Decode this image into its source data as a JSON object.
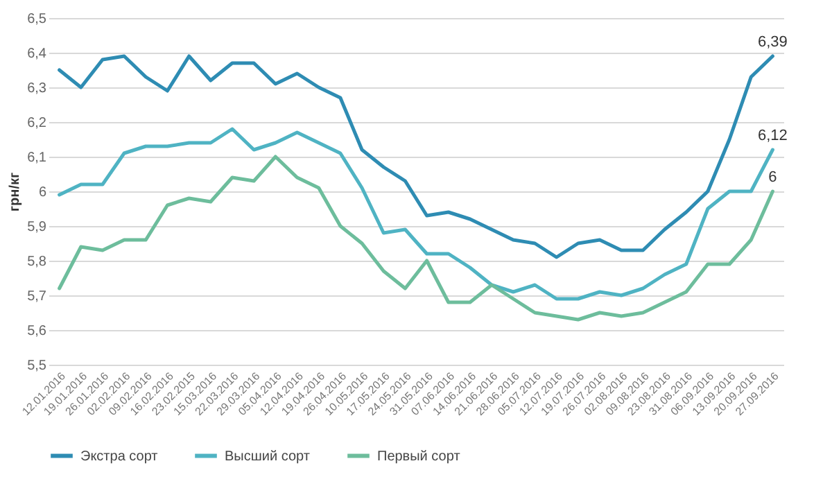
{
  "chart_data": {
    "type": "line",
    "ylabel": "грн/кг",
    "categories": [
      "12.01.2016",
      "19.01.2016",
      "26.01.2016",
      "02.02.2016",
      "09.02.2016",
      "16.02.2016",
      "23.02.2015",
      "15.03.2016",
      "22.03.2016",
      "29.03.2016",
      "05.04.2016",
      "12.04.2016",
      "19.04.2016",
      "26.04.2016",
      "10.05.2016",
      "17.05.2016",
      "24.05.2016",
      "31.05.2016",
      "07.06.2016",
      "14.06.2016",
      "21.06.2016",
      "28.06.2016",
      "05.07.2016",
      "12.07.2016",
      "19.07.2016",
      "26.07.2016",
      "02.08.2016",
      "09.08.2016",
      "23.08.2016",
      "31.08.2016",
      "06.09.2016",
      "13.09.2016",
      "20.09.2016",
      "27.09.2016"
    ],
    "series": [
      {
        "name": "Экстра сорт",
        "color": "#2e8cb3",
        "values": [
          6.35,
          6.3,
          6.38,
          6.39,
          6.33,
          6.29,
          6.39,
          6.32,
          6.37,
          6.37,
          6.31,
          6.34,
          6.3,
          6.27,
          6.12,
          6.07,
          6.03,
          5.93,
          5.94,
          5.92,
          5.89,
          5.86,
          5.85,
          5.81,
          5.85,
          5.86,
          5.83,
          5.83,
          5.89,
          5.94,
          6.0,
          6.15,
          6.33,
          6.39
        ],
        "value_labels": [
          null,
          null,
          null,
          null,
          null,
          null,
          null,
          null,
          null,
          null,
          null,
          null,
          null,
          null,
          null,
          null,
          null,
          null,
          null,
          null,
          null,
          null,
          null,
          null,
          null,
          null,
          null,
          null,
          null,
          null,
          null,
          null,
          null,
          "6,39"
        ]
      },
      {
        "name": "Высший сорт",
        "color": "#4fb3c3",
        "values": [
          5.99,
          6.02,
          6.02,
          6.11,
          6.13,
          6.13,
          6.14,
          6.14,
          6.18,
          6.12,
          6.14,
          6.17,
          6.14,
          6.11,
          6.01,
          5.88,
          5.89,
          5.82,
          5.82,
          5.78,
          5.73,
          5.71,
          5.73,
          5.69,
          5.69,
          5.71,
          5.7,
          5.72,
          5.76,
          5.79,
          5.95,
          6.0,
          6.0,
          6.12
        ],
        "value_labels": [
          null,
          null,
          null,
          null,
          null,
          null,
          null,
          null,
          null,
          null,
          null,
          null,
          null,
          null,
          null,
          null,
          null,
          null,
          null,
          null,
          null,
          null,
          null,
          null,
          null,
          null,
          null,
          null,
          null,
          null,
          null,
          null,
          null,
          "6,12"
        ]
      },
      {
        "name": "Первый сорт",
        "color": "#6dbd9c",
        "values": [
          5.72,
          5.84,
          5.83,
          5.86,
          5.86,
          5.96,
          5.98,
          5.97,
          6.04,
          6.03,
          6.1,
          6.04,
          6.01,
          5.9,
          5.85,
          5.77,
          5.72,
          5.8,
          5.68,
          5.68,
          5.73,
          5.69,
          5.65,
          5.64,
          5.63,
          5.65,
          5.64,
          5.65,
          5.68,
          5.71,
          5.79,
          5.79,
          5.86,
          6.0
        ],
        "value_labels": [
          null,
          null,
          null,
          null,
          null,
          null,
          null,
          null,
          null,
          null,
          null,
          null,
          null,
          null,
          null,
          null,
          null,
          null,
          null,
          null,
          null,
          null,
          null,
          null,
          null,
          null,
          null,
          null,
          null,
          null,
          null,
          null,
          null,
          "6"
        ]
      }
    ],
    "ylim": [
      5.5,
      6.5
    ],
    "yticks": [
      {
        "value": 5.5,
        "label": "5,5"
      },
      {
        "value": 5.6,
        "label": "5,6"
      },
      {
        "value": 5.7,
        "label": "5,7"
      },
      {
        "value": 5.8,
        "label": "5,8"
      },
      {
        "value": 5.9,
        "label": "5,9"
      },
      {
        "value": 6,
        "label": "6"
      },
      {
        "value": 6.1,
        "label": "6,1"
      },
      {
        "value": 6.2,
        "label": "6,2"
      },
      {
        "value": 6.3,
        "label": "6,3"
      },
      {
        "value": 6.4,
        "label": "6,4"
      },
      {
        "value": 6.5,
        "label": "6,5"
      }
    ],
    "grid": "y",
    "legend": "bottom",
    "marker": "none",
    "line_style": "solid"
  }
}
